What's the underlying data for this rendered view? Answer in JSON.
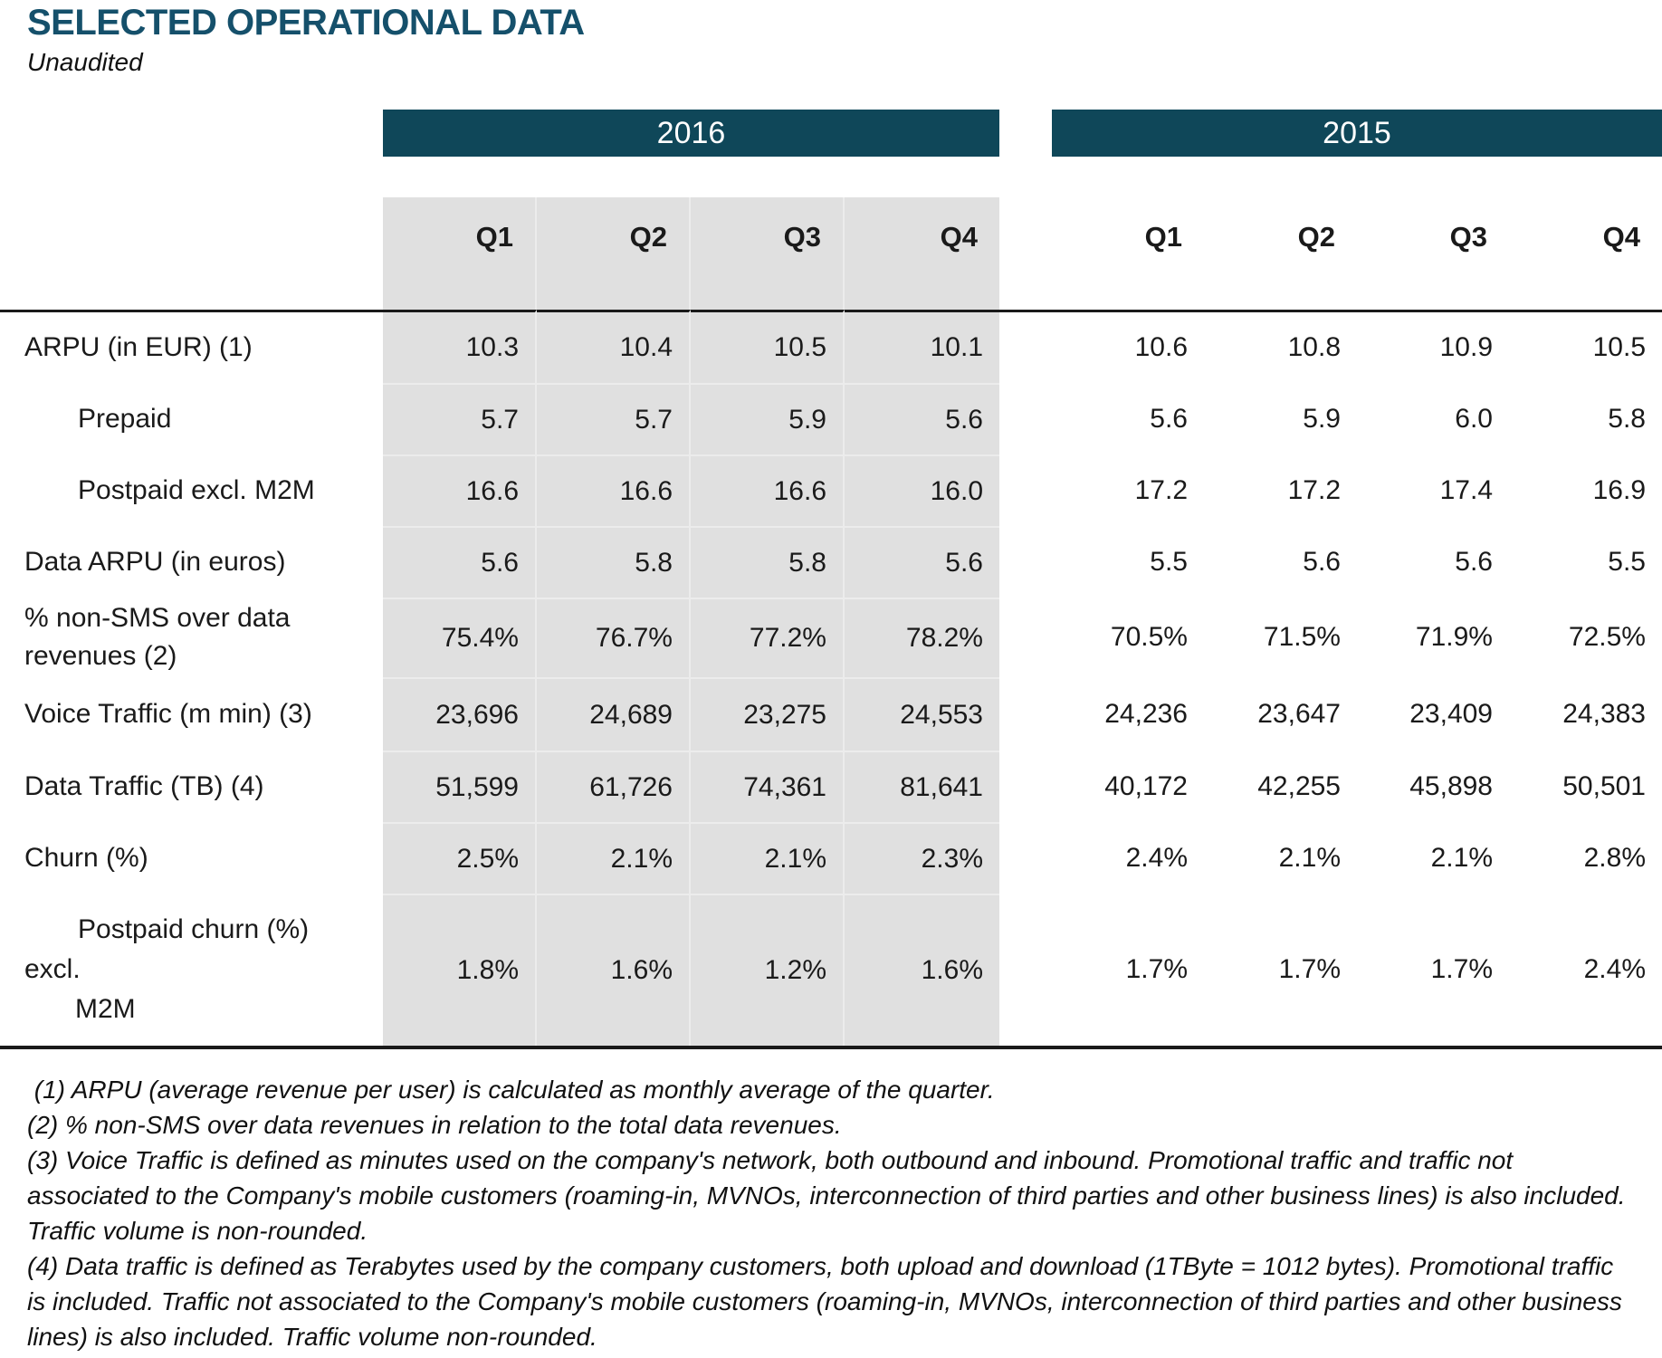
{
  "header": {
    "title": "SELECTED OPERATIONAL DATA",
    "subtitle": "Unaudited"
  },
  "table": {
    "year_groups": [
      {
        "label": "2016"
      },
      {
        "label": "2015"
      }
    ],
    "quarters_2016": [
      "Q1",
      "Q2",
      "Q3",
      "Q4"
    ],
    "quarters_2015": [
      "Q1",
      "Q2",
      "Q3",
      "Q4"
    ],
    "rows": [
      {
        "label": "ARPU (in EUR) (1)",
        "q2016": [
          "10.3",
          "10.4",
          "10.5",
          "10.1"
        ],
        "q2015": [
          "10.6",
          "10.8",
          "10.9",
          "10.5"
        ]
      },
      {
        "label": "Prepaid",
        "q2016": [
          "5.7",
          "5.7",
          "5.9",
          "5.6"
        ],
        "q2015": [
          "5.6",
          "5.9",
          "6.0",
          "5.8"
        ]
      },
      {
        "label": "Postpaid excl. M2M",
        "q2016": [
          "16.6",
          "16.6",
          "16.6",
          "16.0"
        ],
        "q2015": [
          "17.2",
          "17.2",
          "17.4",
          "16.9"
        ]
      },
      {
        "label": "Data ARPU (in euros)",
        "q2016": [
          "5.6",
          "5.8",
          "5.8",
          "5.6"
        ],
        "q2015": [
          "5.5",
          "5.6",
          "5.6",
          "5.5"
        ]
      },
      {
        "label": "% non-SMS over data",
        "label2": "revenues (2)",
        "q2016": [
          "75.4%",
          "76.7%",
          "77.2%",
          "78.2%"
        ],
        "q2015": [
          "70.5%",
          "71.5%",
          "71.9%",
          "72.5%"
        ]
      },
      {
        "label": "Voice Traffic (m min) (3)",
        "q2016": [
          "23,696",
          "24,689",
          "23,275",
          "24,553"
        ],
        "q2015": [
          "24,236",
          "23,647",
          "23,409",
          "24,383"
        ]
      },
      {
        "label": "Data Traffic (TB) (4)",
        "q2016": [
          "51,599",
          "61,726",
          "74,361",
          "81,641"
        ],
        "q2015": [
          "40,172",
          "42,255",
          "45,898",
          "50,501"
        ]
      },
      {
        "label": "Churn (%)",
        "q2016": [
          "2.5%",
          "2.1%",
          "2.1%",
          "2.3%"
        ],
        "q2015": [
          "2.4%",
          "2.1%",
          "2.1%",
          "2.8%"
        ]
      },
      {
        "label": "Postpaid churn (%)",
        "label2": "excl.",
        "label3": "M2M",
        "q2016": [
          "1.8%",
          "1.6%",
          "1.2%",
          "1.6%"
        ],
        "q2015": [
          "1.7%",
          "1.7%",
          "1.7%",
          "2.4%"
        ]
      }
    ]
  },
  "footnotes": [
    " (1) ARPU (average revenue per user) is calculated as monthly average of the quarter.",
    "(2) % non-SMS over data revenues in relation to the total data revenues.",
    "(3) Voice Traffic is defined as minutes used on the company's network, both outbound and inbound. Promotional traffic and traffic not associated to the Company's mobile customers (roaming-in, MVNOs, interconnection of third parties and other business lines) is also included. Traffic volume is non-rounded.",
    "(4) Data traffic is defined as Terabytes used by the company customers, both upload and download (1TByte = 1012 bytes). Promotional traffic is included. Traffic not associated to the Company's mobile customers (roaming-in, MVNOs, interconnection of third parties and other business lines) is also included. Traffic volume non-rounded."
  ],
  "colors": {
    "header_bar": "#0f4759",
    "title": "#15506b",
    "shaded_column": "#e0e0e0",
    "rule": "#1a1a1a"
  }
}
